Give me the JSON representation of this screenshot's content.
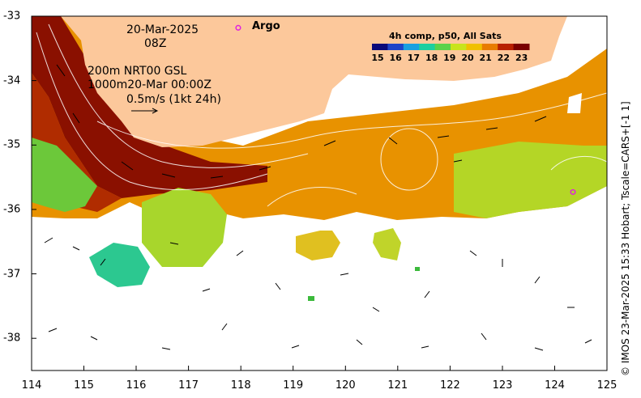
{
  "map": {
    "lon_range": [
      114,
      125
    ],
    "lat_range": [
      -38.5,
      -33
    ],
    "x_ticks": [
      "114",
      "115",
      "116",
      "117",
      "118",
      "119",
      "120",
      "121",
      "122",
      "123",
      "124",
      "125"
    ],
    "y_ticks": [
      "-33",
      "-34",
      "-35",
      "-36",
      "-37",
      "-38"
    ],
    "land_color": "#fcc89b"
  },
  "annotations": {
    "date": "20-Mar-2025",
    "time": "08Z",
    "depth_line1": "200m  NRT00 GSL",
    "depth_line2": "1000m20-Mar 00:00Z",
    "vector_scale": "0.5m/s (1kt 24h)",
    "argo_label": "Argo"
  },
  "colorbar": {
    "title": "4h comp, p50, All Sats",
    "labels": [
      "15",
      "16",
      "17",
      "18",
      "19",
      "20",
      "21",
      "22",
      "23"
    ],
    "colors": [
      "#0a0a7a",
      "#1f44c8",
      "#1aa0e0",
      "#1ccfa0",
      "#5ad24a",
      "#c8e41c",
      "#f0c000",
      "#e87c00",
      "#b82000",
      "#7a0000"
    ]
  },
  "credit": "© IMOS 23-Mar-2025 15:33 Hobart; Tscale=CARS+[-1 1]",
  "argo_floats": [
    {
      "lon": 117.95,
      "lat": -33.18
    },
    {
      "lon": 124.35,
      "lat": -35.73
    }
  ]
}
